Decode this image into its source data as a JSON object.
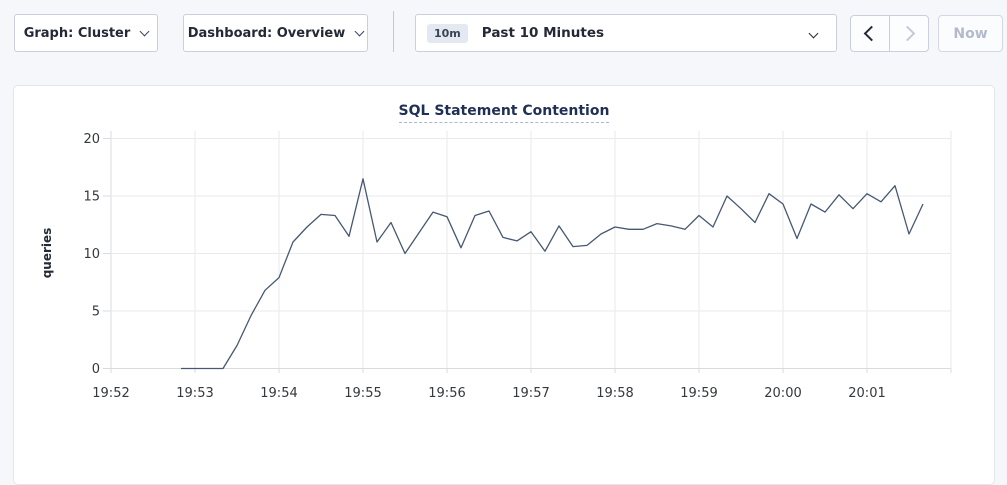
{
  "toolbar": {
    "graph_dropdown_label": "Graph: Cluster",
    "dashboard_dropdown_label": "Dashboard: Overview",
    "time_window_badge": "10m",
    "time_window_label": "Past 10 Minutes",
    "now_button_label": "Now"
  },
  "chart_data": {
    "type": "line",
    "title": "SQL Statement Contention",
    "xlabel": "",
    "ylabel": "queries",
    "ylim": [
      0,
      20
    ],
    "y_ticks": [
      0,
      5,
      10,
      15,
      20
    ],
    "x_ticks": [
      "19:52",
      "19:53",
      "19:54",
      "19:55",
      "19:56",
      "19:57",
      "19:58",
      "19:59",
      "20:00",
      "20:01"
    ],
    "grid": true,
    "legend_position": "none",
    "line_color": "#475872",
    "series": [
      {
        "name": "queries",
        "start_time": "19:52:50",
        "interval_seconds": 10,
        "values": [
          0,
          0,
          0,
          0,
          2.0,
          4.6,
          6.8,
          7.9,
          11.0,
          12.3,
          13.4,
          13.3,
          11.5,
          16.5,
          11.0,
          12.7,
          10.0,
          11.8,
          13.6,
          13.2,
          10.5,
          13.3,
          13.7,
          11.4,
          11.1,
          11.9,
          10.2,
          12.4,
          10.6,
          10.7,
          11.7,
          12.3,
          12.1,
          12.1,
          12.6,
          12.4,
          12.1,
          13.3,
          12.3,
          15.0,
          13.9,
          12.7,
          15.2,
          14.3,
          11.3,
          14.3,
          13.6,
          15.1,
          13.9,
          15.2,
          14.5,
          15.9,
          11.7,
          14.3
        ]
      }
    ]
  },
  "colors": {
    "page_bg": "#f5f7fa",
    "grid_line": "#e8eaed",
    "axis_line": "#d8dbe0",
    "tick_text": "#35383d"
  }
}
